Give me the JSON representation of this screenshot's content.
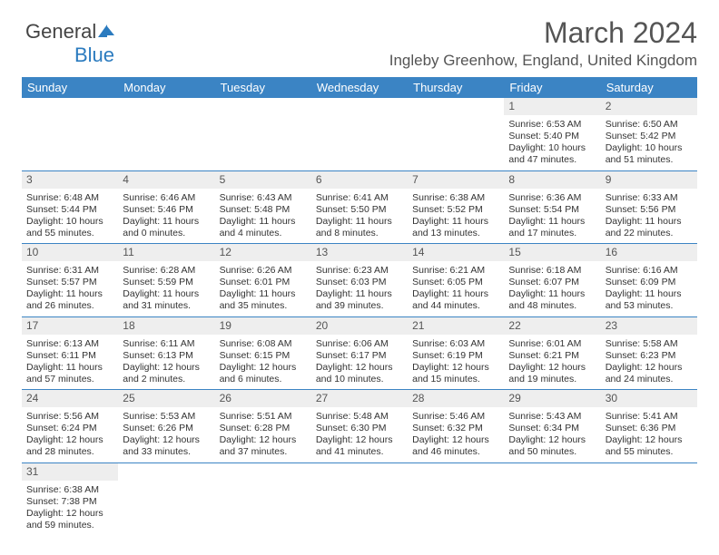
{
  "brand": {
    "part1": "General",
    "part2": "Blue"
  },
  "title": "March 2024",
  "subtitle": "Ingleby Greenhow, England, United Kingdom",
  "day_headers": [
    "Sunday",
    "Monday",
    "Tuesday",
    "Wednesday",
    "Thursday",
    "Friday",
    "Saturday"
  ],
  "colors": {
    "header_bg": "#3b84c4",
    "header_fg": "#ffffff",
    "daynum_bg": "#eeeeee",
    "row_border": "#3b84c4"
  },
  "weeks": [
    [
      null,
      null,
      null,
      null,
      null,
      {
        "n": "1",
        "sunrise": "Sunrise: 6:53 AM",
        "sunset": "Sunset: 5:40 PM",
        "daylight": "Daylight: 10 hours and 47 minutes."
      },
      {
        "n": "2",
        "sunrise": "Sunrise: 6:50 AM",
        "sunset": "Sunset: 5:42 PM",
        "daylight": "Daylight: 10 hours and 51 minutes."
      }
    ],
    [
      {
        "n": "3",
        "sunrise": "Sunrise: 6:48 AM",
        "sunset": "Sunset: 5:44 PM",
        "daylight": "Daylight: 10 hours and 55 minutes."
      },
      {
        "n": "4",
        "sunrise": "Sunrise: 6:46 AM",
        "sunset": "Sunset: 5:46 PM",
        "daylight": "Daylight: 11 hours and 0 minutes."
      },
      {
        "n": "5",
        "sunrise": "Sunrise: 6:43 AM",
        "sunset": "Sunset: 5:48 PM",
        "daylight": "Daylight: 11 hours and 4 minutes."
      },
      {
        "n": "6",
        "sunrise": "Sunrise: 6:41 AM",
        "sunset": "Sunset: 5:50 PM",
        "daylight": "Daylight: 11 hours and 8 minutes."
      },
      {
        "n": "7",
        "sunrise": "Sunrise: 6:38 AM",
        "sunset": "Sunset: 5:52 PM",
        "daylight": "Daylight: 11 hours and 13 minutes."
      },
      {
        "n": "8",
        "sunrise": "Sunrise: 6:36 AM",
        "sunset": "Sunset: 5:54 PM",
        "daylight": "Daylight: 11 hours and 17 minutes."
      },
      {
        "n": "9",
        "sunrise": "Sunrise: 6:33 AM",
        "sunset": "Sunset: 5:56 PM",
        "daylight": "Daylight: 11 hours and 22 minutes."
      }
    ],
    [
      {
        "n": "10",
        "sunrise": "Sunrise: 6:31 AM",
        "sunset": "Sunset: 5:57 PM",
        "daylight": "Daylight: 11 hours and 26 minutes."
      },
      {
        "n": "11",
        "sunrise": "Sunrise: 6:28 AM",
        "sunset": "Sunset: 5:59 PM",
        "daylight": "Daylight: 11 hours and 31 minutes."
      },
      {
        "n": "12",
        "sunrise": "Sunrise: 6:26 AM",
        "sunset": "Sunset: 6:01 PM",
        "daylight": "Daylight: 11 hours and 35 minutes."
      },
      {
        "n": "13",
        "sunrise": "Sunrise: 6:23 AM",
        "sunset": "Sunset: 6:03 PM",
        "daylight": "Daylight: 11 hours and 39 minutes."
      },
      {
        "n": "14",
        "sunrise": "Sunrise: 6:21 AM",
        "sunset": "Sunset: 6:05 PM",
        "daylight": "Daylight: 11 hours and 44 minutes."
      },
      {
        "n": "15",
        "sunrise": "Sunrise: 6:18 AM",
        "sunset": "Sunset: 6:07 PM",
        "daylight": "Daylight: 11 hours and 48 minutes."
      },
      {
        "n": "16",
        "sunrise": "Sunrise: 6:16 AM",
        "sunset": "Sunset: 6:09 PM",
        "daylight": "Daylight: 11 hours and 53 minutes."
      }
    ],
    [
      {
        "n": "17",
        "sunrise": "Sunrise: 6:13 AM",
        "sunset": "Sunset: 6:11 PM",
        "daylight": "Daylight: 11 hours and 57 minutes."
      },
      {
        "n": "18",
        "sunrise": "Sunrise: 6:11 AM",
        "sunset": "Sunset: 6:13 PM",
        "daylight": "Daylight: 12 hours and 2 minutes."
      },
      {
        "n": "19",
        "sunrise": "Sunrise: 6:08 AM",
        "sunset": "Sunset: 6:15 PM",
        "daylight": "Daylight: 12 hours and 6 minutes."
      },
      {
        "n": "20",
        "sunrise": "Sunrise: 6:06 AM",
        "sunset": "Sunset: 6:17 PM",
        "daylight": "Daylight: 12 hours and 10 minutes."
      },
      {
        "n": "21",
        "sunrise": "Sunrise: 6:03 AM",
        "sunset": "Sunset: 6:19 PM",
        "daylight": "Daylight: 12 hours and 15 minutes."
      },
      {
        "n": "22",
        "sunrise": "Sunrise: 6:01 AM",
        "sunset": "Sunset: 6:21 PM",
        "daylight": "Daylight: 12 hours and 19 minutes."
      },
      {
        "n": "23",
        "sunrise": "Sunrise: 5:58 AM",
        "sunset": "Sunset: 6:23 PM",
        "daylight": "Daylight: 12 hours and 24 minutes."
      }
    ],
    [
      {
        "n": "24",
        "sunrise": "Sunrise: 5:56 AM",
        "sunset": "Sunset: 6:24 PM",
        "daylight": "Daylight: 12 hours and 28 minutes."
      },
      {
        "n": "25",
        "sunrise": "Sunrise: 5:53 AM",
        "sunset": "Sunset: 6:26 PM",
        "daylight": "Daylight: 12 hours and 33 minutes."
      },
      {
        "n": "26",
        "sunrise": "Sunrise: 5:51 AM",
        "sunset": "Sunset: 6:28 PM",
        "daylight": "Daylight: 12 hours and 37 minutes."
      },
      {
        "n": "27",
        "sunrise": "Sunrise: 5:48 AM",
        "sunset": "Sunset: 6:30 PM",
        "daylight": "Daylight: 12 hours and 41 minutes."
      },
      {
        "n": "28",
        "sunrise": "Sunrise: 5:46 AM",
        "sunset": "Sunset: 6:32 PM",
        "daylight": "Daylight: 12 hours and 46 minutes."
      },
      {
        "n": "29",
        "sunrise": "Sunrise: 5:43 AM",
        "sunset": "Sunset: 6:34 PM",
        "daylight": "Daylight: 12 hours and 50 minutes."
      },
      {
        "n": "30",
        "sunrise": "Sunrise: 5:41 AM",
        "sunset": "Sunset: 6:36 PM",
        "daylight": "Daylight: 12 hours and 55 minutes."
      }
    ],
    [
      {
        "n": "31",
        "sunrise": "Sunrise: 6:38 AM",
        "sunset": "Sunset: 7:38 PM",
        "daylight": "Daylight: 12 hours and 59 minutes."
      },
      null,
      null,
      null,
      null,
      null,
      null
    ]
  ]
}
